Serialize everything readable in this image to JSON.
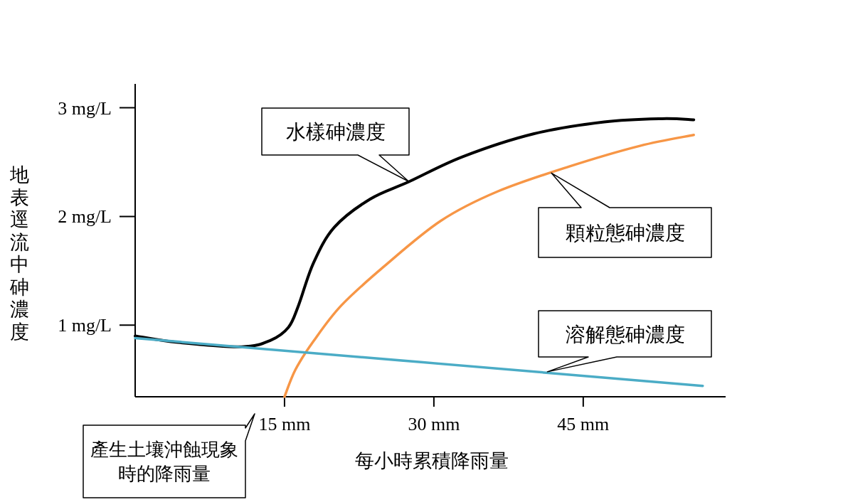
{
  "chart_data": {
    "type": "line",
    "xlabel": "每小時累積降雨量",
    "ylabel": "地表逕流中砷濃度",
    "xlim": [
      0,
      59.3
    ],
    "ylim": [
      0.34,
      3.22
    ],
    "xticks": [
      {
        "value": 15,
        "label": "15 mm"
      },
      {
        "value": 30,
        "label": "30 mm"
      },
      {
        "value": 45,
        "label": "45 mm"
      }
    ],
    "yticks": [
      {
        "value": 1,
        "label": "1 mg/L"
      },
      {
        "value": 2,
        "label": "2 mg/L"
      },
      {
        "value": 3,
        "label": "3 mg/L"
      }
    ],
    "grid": false,
    "marker": "none",
    "line_style": "solid",
    "series": [
      {
        "color": "#000000",
        "x": [
          0,
          4.3,
          10.7,
          13.6,
          15.4,
          16.4,
          17.9,
          20,
          23.6,
          27.5,
          32.9,
          40,
          47.1,
          52.9,
          56.1
        ],
        "values": [
          0.9,
          0.84,
          0.8,
          0.86,
          0.98,
          1.18,
          1.57,
          1.9,
          2.16,
          2.32,
          2.55,
          2.76,
          2.87,
          2.9,
          2.89
        ]
      },
      {
        "color": "#f79646",
        "x": [
          15,
          16.1,
          17.9,
          20.7,
          25,
          30.7,
          36.4,
          43.6,
          50.7,
          56.1
        ],
        "values": [
          0.34,
          0.59,
          0.85,
          1.18,
          1.54,
          1.96,
          2.23,
          2.46,
          2.65,
          2.75
        ]
      },
      {
        "color": "#4bacc6",
        "x": [
          0,
          57
        ],
        "values": [
          0.88,
          0.44
        ]
      }
    ],
    "annotations": [
      {
        "text": "水樣砷濃度",
        "x": 27.5,
        "y": 2.32
      },
      {
        "text": "顆粒態砷濃度",
        "x": 41.8,
        "y": 2.4
      },
      {
        "text": "溶解態砷濃度",
        "x": 41.4,
        "y": 0.57
      },
      "產生土壤沖蝕現象時的降雨量"
    ]
  }
}
